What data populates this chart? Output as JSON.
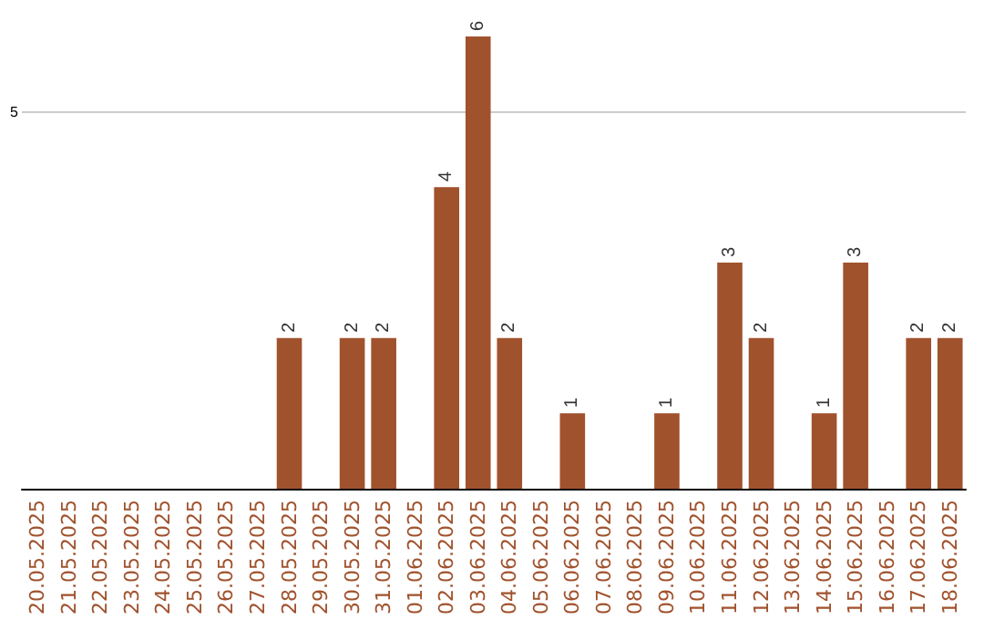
{
  "chart_data": {
    "type": "bar",
    "categories": [
      "20.05.2025",
      "21.05.2025",
      "22.05.2025",
      "23.05.2025",
      "24.05.2025",
      "25.05.2025",
      "26.05.2025",
      "27.05.2025",
      "28.05.2025",
      "29.05.2025",
      "30.05.2025",
      "31.05.2025",
      "01.06.2025",
      "02.06.2025",
      "03.06.2025",
      "04.06.2025",
      "05.06.2025",
      "06.06.2025",
      "07.06.2025",
      "08.06.2025",
      "09.06.2025",
      "10.06.2025",
      "11.06.2025",
      "12.06.2025",
      "13.06.2025",
      "14.06.2025",
      "15.06.2025",
      "16.06.2025",
      "17.06.2025",
      "18.06.2025"
    ],
    "values": [
      0,
      0,
      0,
      0,
      0,
      0,
      0,
      0,
      2,
      0,
      2,
      2,
      0,
      4,
      6,
      2,
      0,
      1,
      0,
      0,
      1,
      0,
      3,
      2,
      0,
      1,
      3,
      0,
      2,
      2
    ],
    "value_labels": [
      null,
      null,
      null,
      null,
      null,
      null,
      null,
      null,
      "2",
      null,
      "2",
      "2",
      null,
      "4",
      "6",
      "2",
      null,
      "1",
      null,
      null,
      "1",
      null,
      "3",
      "2",
      null,
      "1",
      "3",
      null,
      "2",
      "2"
    ],
    "color": "#a0522d",
    "ylim": [
      0,
      6
    ],
    "yticks": [
      5
    ],
    "grid": "y"
  }
}
